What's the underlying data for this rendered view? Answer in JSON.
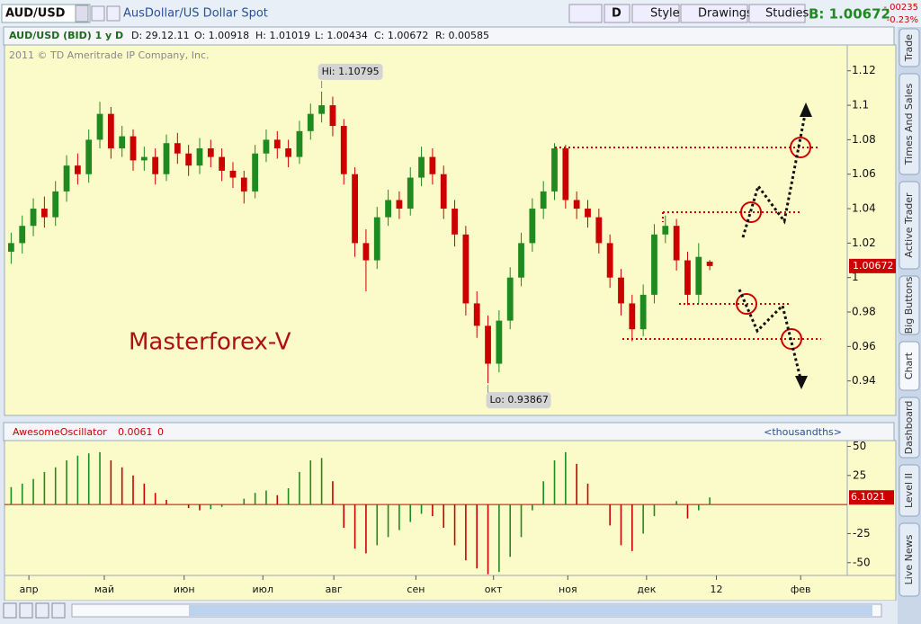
{
  "toolbar": {
    "symbol": "AUD/USD",
    "description": "AusDollar/US Dollar Spot",
    "period": "D",
    "style": "Style",
    "drawings": "Drawings",
    "studies": "Studies",
    "bid": "B: 1.00672",
    "change": "-.00235",
    "change_pct": "-0.23%"
  },
  "header": {
    "instrument": "AUD/USD (BID) 1 y D",
    "date": "D: 29.12.11",
    "open": "O: 1.00918",
    "high": "H: 1.01019",
    "low": "L: 1.00434",
    "close": "C: 1.00672",
    "range": "R: 0.00585"
  },
  "copyright": "2011 © TD Ameritrade IP Company, Inc.",
  "annotations": {
    "hi": "Hi: 1.10795",
    "lo": "Lo: 0.93867",
    "watermark": "Masterforex-V"
  },
  "study_header": {
    "name": "AwesomeOscillator",
    "value": "0.0061",
    "zero": "0",
    "units": "<thousandths>"
  },
  "side_tabs": [
    "Trade",
    "Times And Sales",
    "Active Trader",
    "Big Buttons",
    "Chart",
    "Dashboard",
    "Level II",
    "Live News"
  ],
  "chart_data": [
    {
      "type": "candlestick",
      "open": [
        1.015,
        1.02,
        1.03,
        1.04,
        1.035,
        1.05,
        1.065,
        1.06,
        1.08,
        1.095,
        1.075,
        1.082,
        1.068,
        1.07,
        1.06,
        1.078,
        1.072,
        1.065,
        1.075,
        1.07,
        1.062,
        1.058,
        1.05,
        1.072,
        1.08,
        1.075,
        1.07,
        1.085,
        1.095,
        1.1,
        1.088,
        1.06,
        1.02,
        1.01,
        1.035,
        1.045,
        1.04,
        1.058,
        1.07,
        1.06,
        1.04,
        1.025,
        0.985,
        0.972,
        0.95,
        0.975,
        1.0,
        1.02,
        1.04,
        1.05,
        1.075,
        1.045,
        1.04,
        1.035,
        1.02,
        1.0,
        0.985,
        0.97,
        0.99,
        1.025,
        1.03,
        1.01,
        0.99,
        1.0092
      ],
      "high": [
        1.026,
        1.036,
        1.046,
        1.047,
        1.056,
        1.071,
        1.072,
        1.086,
        1.102,
        1.099,
        1.088,
        1.086,
        1.076,
        1.075,
        1.083,
        1.084,
        1.077,
        1.081,
        1.08,
        1.075,
        1.067,
        1.062,
        1.077,
        1.086,
        1.085,
        1.08,
        1.091,
        1.101,
        1.1079,
        1.105,
        1.092,
        1.064,
        1.028,
        1.041,
        1.051,
        1.05,
        1.064,
        1.076,
        1.075,
        1.065,
        1.045,
        1.03,
        0.992,
        0.978,
        0.981,
        1.006,
        1.026,
        1.046,
        1.056,
        1.078,
        1.077,
        1.05,
        1.045,
        1.04,
        1.025,
        1.005,
        0.99,
        0.996,
        1.031,
        1.036,
        1.034,
        1.015,
        1.02,
        1.0102
      ],
      "low": [
        1.008,
        1.014,
        1.024,
        1.029,
        1.03,
        1.044,
        1.054,
        1.055,
        1.075,
        1.069,
        1.07,
        1.062,
        1.062,
        1.054,
        1.056,
        1.066,
        1.059,
        1.06,
        1.064,
        1.056,
        1.052,
        1.043,
        1.046,
        1.067,
        1.069,
        1.064,
        1.066,
        1.08,
        1.09,
        1.082,
        1.054,
        1.012,
        0.992,
        1.005,
        1.03,
        1.034,
        1.036,
        1.053,
        1.054,
        1.034,
        1.018,
        0.978,
        0.965,
        0.9387,
        0.945,
        0.97,
        0.995,
        1.015,
        1.034,
        1.045,
        1.04,
        1.034,
        1.029,
        1.014,
        0.994,
        0.978,
        0.963,
        0.966,
        0.985,
        1.02,
        1.004,
        0.984,
        0.985,
        1.0043
      ],
      "close": [
        1.02,
        1.03,
        1.04,
        1.035,
        1.05,
        1.065,
        1.06,
        1.08,
        1.095,
        1.075,
        1.082,
        1.068,
        1.07,
        1.06,
        1.078,
        1.072,
        1.065,
        1.075,
        1.07,
        1.062,
        1.058,
        1.05,
        1.072,
        1.08,
        1.075,
        1.07,
        1.085,
        1.095,
        1.1,
        1.088,
        1.06,
        1.02,
        1.01,
        1.035,
        1.045,
        1.04,
        1.058,
        1.07,
        1.06,
        1.04,
        1.025,
        0.985,
        0.972,
        0.95,
        0.975,
        1.0,
        1.02,
        1.04,
        1.05,
        1.075,
        1.045,
        1.04,
        1.035,
        1.02,
        1.0,
        0.985,
        0.97,
        0.99,
        1.025,
        1.03,
        1.01,
        0.99,
        1.012,
        1.0067
      ],
      "up_color": "#1f8a1f",
      "down_color": "#cc0000",
      "last_price_label": "1.00672",
      "xlim": [
        -0.6,
        75.4
      ],
      "ylim": [
        0.92,
        1.135
      ],
      "yticks": [
        0.94,
        0.96,
        0.98,
        1,
        1.02,
        1.04,
        1.06,
        1.08,
        1.1,
        1.12
      ],
      "xticks": [
        {
          "value": 1.6,
          "label": "апр"
        },
        {
          "value": 8.4,
          "label": "май"
        },
        {
          "value": 15.6,
          "label": "июн"
        },
        {
          "value": 22.7,
          "label": "июл"
        },
        {
          "value": 29.1,
          "label": "авг"
        },
        {
          "value": 36.5,
          "label": "сен"
        },
        {
          "value": 43.5,
          "label": "окт"
        },
        {
          "value": 50.2,
          "label": "ноя"
        },
        {
          "value": 57.3,
          "label": "дек"
        },
        {
          "value": 63.6,
          "label": "12"
        },
        {
          "value": 71.2,
          "label": "фев"
        }
      ]
    },
    {
      "type": "bar",
      "values": [
        15,
        18,
        22,
        28,
        32,
        38,
        42,
        44,
        45,
        38,
        32,
        25,
        18,
        10,
        4,
        0,
        -3,
        -5,
        -4,
        -2,
        0,
        5,
        10,
        12,
        8,
        14,
        28,
        38,
        40,
        20,
        -20,
        -38,
        -42,
        -35,
        -28,
        -22,
        -15,
        -8,
        -10,
        -20,
        -35,
        -48,
        -55,
        -60,
        -58,
        -45,
        -28,
        -5,
        20,
        38,
        45,
        35,
        18,
        0,
        -18,
        -35,
        -40,
        -25,
        -10,
        0,
        3,
        -12,
        -5,
        6.1021
      ],
      "up_color": "#1f8a1f",
      "down_color": "#cc0000",
      "zero_color": "#cc0000",
      "last_value_label": "6.1021",
      "ylim": [
        -61,
        55
      ],
      "yticks": [
        50,
        25,
        -25,
        -50
      ]
    }
  ]
}
